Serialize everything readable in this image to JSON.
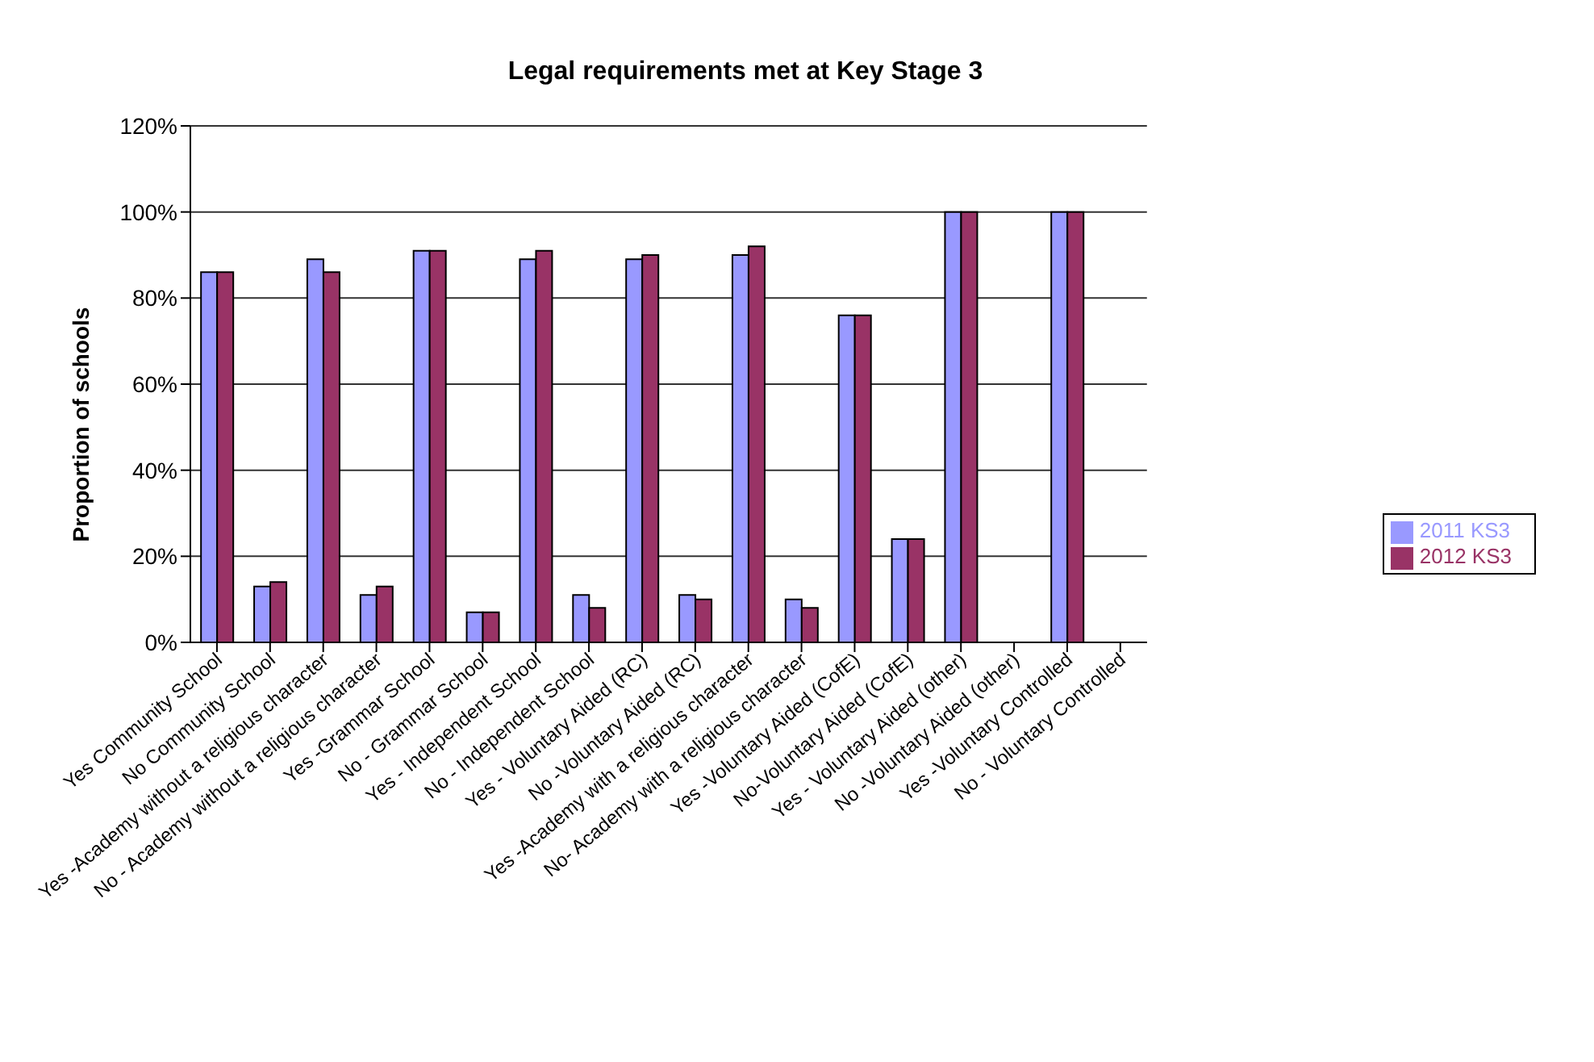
{
  "chart_data": {
    "type": "bar",
    "title": "Legal requirements met at Key Stage 3",
    "ylabel": "Proportion of schools",
    "categories": [
      "Yes Community School",
      "No Community School",
      "Yes -Academy without a religious character",
      "No - Academy without a religious character",
      "Yes -Grammar School",
      "No - Grammar School",
      "Yes - Independent School",
      "No - Independent School",
      "Yes - Voluntary Aided (RC)",
      "No -Voluntary Aided (RC)",
      "Yes -Academy with a religious character",
      "No- Academy with a religious character",
      "Yes -Voluntary Aided (CofE)",
      "No-Voluntary Aided (CofE)",
      "Yes - Voluntary Aided (other)",
      "No -Voluntary Aided (other)",
      "Yes -Voluntary Controlled",
      "No - Voluntary Controlled"
    ],
    "series": [
      {
        "name": "2011 KS3",
        "color": "#9999ff",
        "values": [
          86,
          13,
          89,
          11,
          91,
          7,
          89,
          11,
          89,
          11,
          90,
          10,
          76,
          24,
          100,
          null,
          100,
          null
        ]
      },
      {
        "name": "2012 KS3",
        "color": "#993366",
        "values": [
          86,
          14,
          86,
          13,
          91,
          7,
          91,
          8,
          90,
          10,
          92,
          8,
          76,
          24,
          100,
          null,
          100,
          null
        ]
      }
    ],
    "ylim": [
      0,
      120
    ],
    "yticks": [
      {
        "value": 0,
        "label": "0%"
      },
      {
        "value": 20,
        "label": "20%"
      },
      {
        "value": 40,
        "label": "40%"
      },
      {
        "value": 60,
        "label": "60%"
      },
      {
        "value": 80,
        "label": "80%"
      },
      {
        "value": 100,
        "label": "100%"
      },
      {
        "value": 120,
        "label": "120%"
      }
    ],
    "grid": "y",
    "legend": "right"
  }
}
